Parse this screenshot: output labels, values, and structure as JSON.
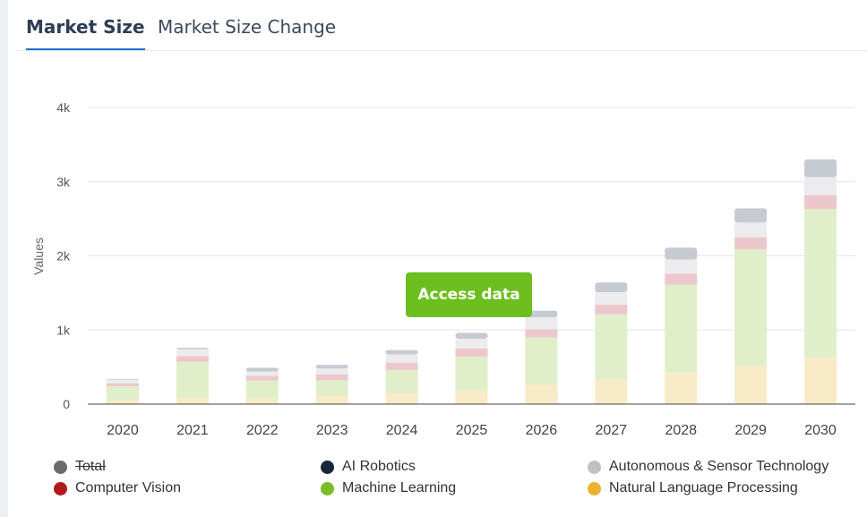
{
  "tabs": [
    {
      "label": "Market Size"
    },
    {
      "label": "Market Size Change"
    }
  ],
  "access_button": {
    "label": "Access data"
  },
  "chart_data": {
    "type": "bar",
    "stacked": true,
    "ylabel": "Values",
    "xlabel": "",
    "ylim": [
      0,
      4000
    ],
    "yticks": [
      {
        "value": 0,
        "label": "0"
      },
      {
        "value": 1000,
        "label": "1k"
      },
      {
        "value": 2000,
        "label": "2k"
      },
      {
        "value": 3000,
        "label": "3k"
      },
      {
        "value": 4000,
        "label": "4k"
      }
    ],
    "grid": true,
    "categories": [
      "2020",
      "2021",
      "2022",
      "2023",
      "2024",
      "2025",
      "2026",
      "2027",
      "2028",
      "2029",
      "2030"
    ],
    "series": [
      {
        "name": "Natural Language Processing",
        "color": "#f9ebc7",
        "values": [
          60,
          90,
          80,
          110,
          150,
          190,
          260,
          330,
          420,
          510,
          630
        ]
      },
      {
        "name": "Machine Learning",
        "color": "#e0efca",
        "values": [
          180,
          480,
          240,
          210,
          310,
          450,
          640,
          880,
          1190,
          1580,
          2000
        ]
      },
      {
        "name": "Computer Vision",
        "color": "#ecc8cc",
        "values": [
          40,
          80,
          60,
          80,
          100,
          110,
          110,
          130,
          150,
          160,
          190
        ]
      },
      {
        "name": "Autonomous & Sensor Technology",
        "color": "#ececee",
        "values": [
          50,
          90,
          60,
          80,
          110,
          130,
          160,
          170,
          190,
          200,
          240
        ]
      },
      {
        "name": "AI Robotics",
        "color": "#c5cbd1",
        "values": [
          10,
          20,
          50,
          50,
          60,
          80,
          90,
          130,
          160,
          190,
          240
        ]
      }
    ],
    "legend": {
      "placement": "bottom",
      "items": [
        {
          "name": "Total",
          "color": "#6b6b6b",
          "hidden": true
        },
        {
          "name": "AI Robotics",
          "color": "#17273b"
        },
        {
          "name": "Autonomous & Sensor Technology",
          "color": "#c0c0c0"
        },
        {
          "name": "Computer Vision",
          "color": "#b01c1c"
        },
        {
          "name": "Machine Learning",
          "color": "#7cbb2a"
        },
        {
          "name": "Natural Language Processing",
          "color": "#eab22e"
        }
      ]
    }
  }
}
